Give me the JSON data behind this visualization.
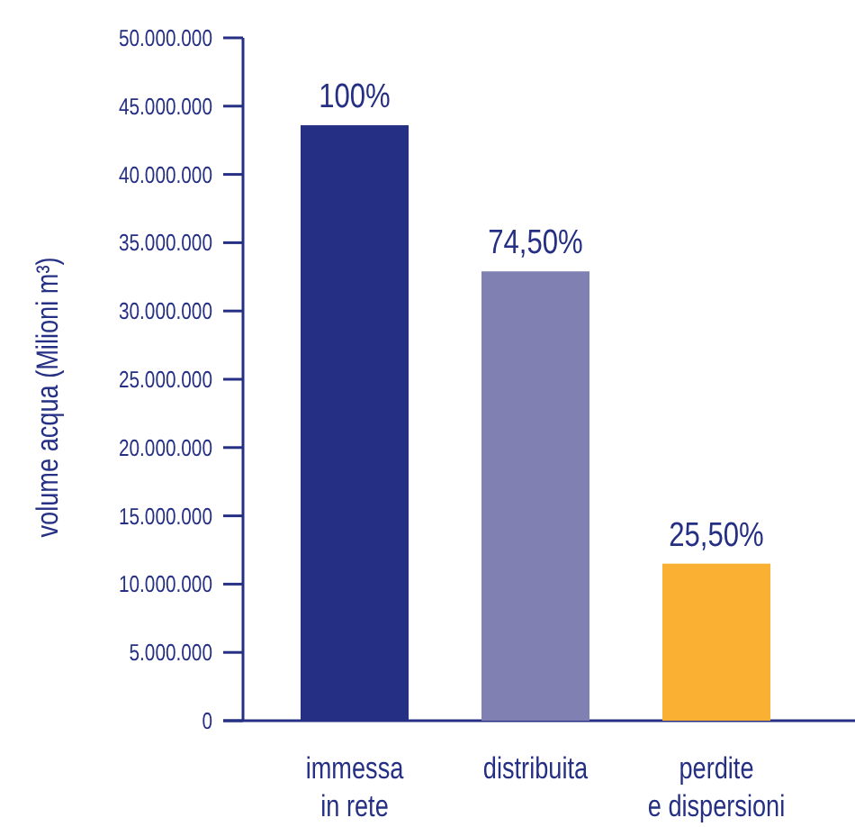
{
  "chart_data": {
    "type": "bar",
    "ylabel": "volume acqua (Milioni m³)",
    "categories": [
      "immessa\nin rete",
      "distribuita",
      "perdite\ne dispersioni"
    ],
    "values": [
      43600000,
      32900000,
      11500000
    ],
    "colors": [
      "#253084",
      "#8080b3",
      "#fab133"
    ],
    "annotations": [
      {
        "text": "100%",
        "x": "immessa\nin rete",
        "y": 43600000
      },
      {
        "text": "74,50%",
        "x": "distribuita",
        "y": 32900000
      },
      {
        "text": "25,50%",
        "x": "perdite\ne dispersioni",
        "y": 11500000
      }
    ],
    "ylim": [
      0,
      50000000
    ],
    "yticks": [
      {
        "value": 0,
        "label": "0"
      },
      {
        "value": 5000000,
        "label": "5.000.000"
      },
      {
        "value": 10000000,
        "label": "10.000.000"
      },
      {
        "value": 15000000,
        "label": "15.000.000"
      },
      {
        "value": 20000000,
        "label": "20.000.000"
      },
      {
        "value": 25000000,
        "label": "25.000.000"
      },
      {
        "value": 30000000,
        "label": "30.000.000"
      },
      {
        "value": 35000000,
        "label": "35.000.000"
      },
      {
        "value": 40000000,
        "label": "40.000.000"
      },
      {
        "value": 45000000,
        "label": "45.000.000"
      },
      {
        "value": 50000000,
        "label": "50.000.000"
      }
    ],
    "grid": false
  }
}
